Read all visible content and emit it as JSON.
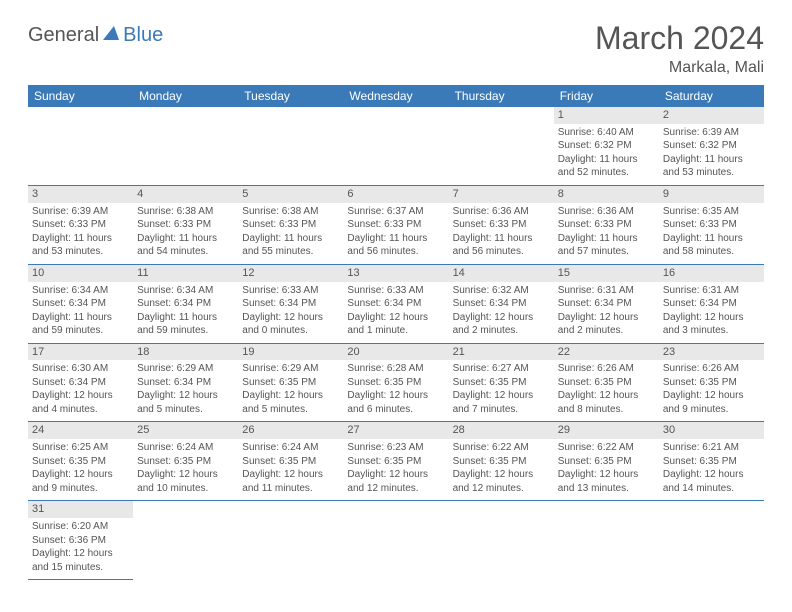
{
  "logo": {
    "part1": "General",
    "part2": "Blue",
    "triangle_color": "#3a7ab8"
  },
  "title": "March 2024",
  "location": "Markala, Mali",
  "header_bg": "#3a7ab8",
  "header_fg": "#ffffff",
  "daynum_bg": "#e8e8e8",
  "rule_color": "#3a7ab8",
  "text_color": "#555555",
  "days": [
    "Sunday",
    "Monday",
    "Tuesday",
    "Wednesday",
    "Thursday",
    "Friday",
    "Saturday"
  ],
  "weeks": [
    [
      null,
      null,
      null,
      null,
      null,
      {
        "n": "1",
        "sr": "Sunrise: 6:40 AM",
        "ss": "Sunset: 6:32 PM",
        "d1": "Daylight: 11 hours",
        "d2": "and 52 minutes."
      },
      {
        "n": "2",
        "sr": "Sunrise: 6:39 AM",
        "ss": "Sunset: 6:32 PM",
        "d1": "Daylight: 11 hours",
        "d2": "and 53 minutes."
      }
    ],
    [
      {
        "n": "3",
        "sr": "Sunrise: 6:39 AM",
        "ss": "Sunset: 6:33 PM",
        "d1": "Daylight: 11 hours",
        "d2": "and 53 minutes."
      },
      {
        "n": "4",
        "sr": "Sunrise: 6:38 AM",
        "ss": "Sunset: 6:33 PM",
        "d1": "Daylight: 11 hours",
        "d2": "and 54 minutes."
      },
      {
        "n": "5",
        "sr": "Sunrise: 6:38 AM",
        "ss": "Sunset: 6:33 PM",
        "d1": "Daylight: 11 hours",
        "d2": "and 55 minutes."
      },
      {
        "n": "6",
        "sr": "Sunrise: 6:37 AM",
        "ss": "Sunset: 6:33 PM",
        "d1": "Daylight: 11 hours",
        "d2": "and 56 minutes."
      },
      {
        "n": "7",
        "sr": "Sunrise: 6:36 AM",
        "ss": "Sunset: 6:33 PM",
        "d1": "Daylight: 11 hours",
        "d2": "and 56 minutes."
      },
      {
        "n": "8",
        "sr": "Sunrise: 6:36 AM",
        "ss": "Sunset: 6:33 PM",
        "d1": "Daylight: 11 hours",
        "d2": "and 57 minutes."
      },
      {
        "n": "9",
        "sr": "Sunrise: 6:35 AM",
        "ss": "Sunset: 6:33 PM",
        "d1": "Daylight: 11 hours",
        "d2": "and 58 minutes."
      }
    ],
    [
      {
        "n": "10",
        "sr": "Sunrise: 6:34 AM",
        "ss": "Sunset: 6:34 PM",
        "d1": "Daylight: 11 hours",
        "d2": "and 59 minutes."
      },
      {
        "n": "11",
        "sr": "Sunrise: 6:34 AM",
        "ss": "Sunset: 6:34 PM",
        "d1": "Daylight: 11 hours",
        "d2": "and 59 minutes."
      },
      {
        "n": "12",
        "sr": "Sunrise: 6:33 AM",
        "ss": "Sunset: 6:34 PM",
        "d1": "Daylight: 12 hours",
        "d2": "and 0 minutes."
      },
      {
        "n": "13",
        "sr": "Sunrise: 6:33 AM",
        "ss": "Sunset: 6:34 PM",
        "d1": "Daylight: 12 hours",
        "d2": "and 1 minute."
      },
      {
        "n": "14",
        "sr": "Sunrise: 6:32 AM",
        "ss": "Sunset: 6:34 PM",
        "d1": "Daylight: 12 hours",
        "d2": "and 2 minutes."
      },
      {
        "n": "15",
        "sr": "Sunrise: 6:31 AM",
        "ss": "Sunset: 6:34 PM",
        "d1": "Daylight: 12 hours",
        "d2": "and 2 minutes."
      },
      {
        "n": "16",
        "sr": "Sunrise: 6:31 AM",
        "ss": "Sunset: 6:34 PM",
        "d1": "Daylight: 12 hours",
        "d2": "and 3 minutes."
      }
    ],
    [
      {
        "n": "17",
        "sr": "Sunrise: 6:30 AM",
        "ss": "Sunset: 6:34 PM",
        "d1": "Daylight: 12 hours",
        "d2": "and 4 minutes."
      },
      {
        "n": "18",
        "sr": "Sunrise: 6:29 AM",
        "ss": "Sunset: 6:34 PM",
        "d1": "Daylight: 12 hours",
        "d2": "and 5 minutes."
      },
      {
        "n": "19",
        "sr": "Sunrise: 6:29 AM",
        "ss": "Sunset: 6:35 PM",
        "d1": "Daylight: 12 hours",
        "d2": "and 5 minutes."
      },
      {
        "n": "20",
        "sr": "Sunrise: 6:28 AM",
        "ss": "Sunset: 6:35 PM",
        "d1": "Daylight: 12 hours",
        "d2": "and 6 minutes."
      },
      {
        "n": "21",
        "sr": "Sunrise: 6:27 AM",
        "ss": "Sunset: 6:35 PM",
        "d1": "Daylight: 12 hours",
        "d2": "and 7 minutes."
      },
      {
        "n": "22",
        "sr": "Sunrise: 6:26 AM",
        "ss": "Sunset: 6:35 PM",
        "d1": "Daylight: 12 hours",
        "d2": "and 8 minutes."
      },
      {
        "n": "23",
        "sr": "Sunrise: 6:26 AM",
        "ss": "Sunset: 6:35 PM",
        "d1": "Daylight: 12 hours",
        "d2": "and 9 minutes."
      }
    ],
    [
      {
        "n": "24",
        "sr": "Sunrise: 6:25 AM",
        "ss": "Sunset: 6:35 PM",
        "d1": "Daylight: 12 hours",
        "d2": "and 9 minutes."
      },
      {
        "n": "25",
        "sr": "Sunrise: 6:24 AM",
        "ss": "Sunset: 6:35 PM",
        "d1": "Daylight: 12 hours",
        "d2": "and 10 minutes."
      },
      {
        "n": "26",
        "sr": "Sunrise: 6:24 AM",
        "ss": "Sunset: 6:35 PM",
        "d1": "Daylight: 12 hours",
        "d2": "and 11 minutes."
      },
      {
        "n": "27",
        "sr": "Sunrise: 6:23 AM",
        "ss": "Sunset: 6:35 PM",
        "d1": "Daylight: 12 hours",
        "d2": "and 12 minutes."
      },
      {
        "n": "28",
        "sr": "Sunrise: 6:22 AM",
        "ss": "Sunset: 6:35 PM",
        "d1": "Daylight: 12 hours",
        "d2": "and 12 minutes."
      },
      {
        "n": "29",
        "sr": "Sunrise: 6:22 AM",
        "ss": "Sunset: 6:35 PM",
        "d1": "Daylight: 12 hours",
        "d2": "and 13 minutes."
      },
      {
        "n": "30",
        "sr": "Sunrise: 6:21 AM",
        "ss": "Sunset: 6:35 PM",
        "d1": "Daylight: 12 hours",
        "d2": "and 14 minutes."
      }
    ],
    [
      {
        "n": "31",
        "sr": "Sunrise: 6:20 AM",
        "ss": "Sunset: 6:36 PM",
        "d1": "Daylight: 12 hours",
        "d2": "and 15 minutes."
      },
      null,
      null,
      null,
      null,
      null,
      null
    ]
  ]
}
